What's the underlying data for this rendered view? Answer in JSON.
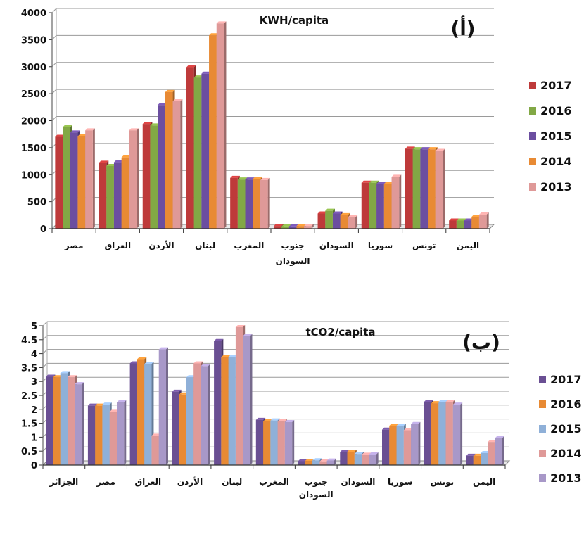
{
  "chart_data": [
    {
      "type": "bar",
      "title": "KWH/capita",
      "tag": "(أ)",
      "ylim": [
        0,
        4000
      ],
      "yticks": [
        0,
        500,
        1000,
        1500,
        2000,
        2500,
        3000,
        3500,
        4000
      ],
      "grid": true,
      "legend_position": "right",
      "categories": [
        {
          "line1": "مصر",
          "line2": ""
        },
        {
          "line1": "العراق",
          "line2": ""
        },
        {
          "line1": "الأردن",
          "line2": ""
        },
        {
          "line1": "لبنان",
          "line2": ""
        },
        {
          "line1": "المغرب",
          "line2": ""
        },
        {
          "line1": "جنوب",
          "line2": "السودان"
        },
        {
          "line1": "السودان",
          "line2": ""
        },
        {
          "line1": "سوريا",
          "line2": ""
        },
        {
          "line1": "تونس",
          "line2": ""
        },
        {
          "line1": "اليمن",
          "line2": ""
        }
      ],
      "series": [
        {
          "name": "2017",
          "color": "#be3a3a",
          "values": [
            1700,
            1220,
            1940,
            2990,
            940,
            50,
            280,
            850,
            1480,
            150
          ]
        },
        {
          "name": "2016",
          "color": "#82a845",
          "values": [
            1880,
            1160,
            1910,
            2800,
            910,
            40,
            330,
            850,
            1470,
            150
          ]
        },
        {
          "name": "2015",
          "color": "#6b4ea0",
          "values": [
            1780,
            1230,
            2290,
            2870,
            910,
            40,
            280,
            830,
            1470,
            150
          ]
        },
        {
          "name": "2014",
          "color": "#e88a34",
          "values": [
            1710,
            1320,
            2530,
            3580,
            920,
            50,
            250,
            830,
            1470,
            220
          ]
        },
        {
          "name": "2013",
          "color": "#df9998",
          "values": [
            1820,
            1820,
            2360,
            3800,
            900,
            50,
            210,
            960,
            1440,
            260
          ]
        }
      ]
    },
    {
      "type": "bar",
      "title": "tCO2/capita",
      "tag": "(ب)",
      "ylim": [
        0,
        5
      ],
      "yticks": [
        "0",
        "0.5",
        "1",
        "1.5",
        "2",
        "2.5",
        "3",
        "3.5",
        "4",
        "4.5",
        "5"
      ],
      "grid": true,
      "legend_position": "right",
      "categories": [
        {
          "line1": "الجزائر",
          "line2": ""
        },
        {
          "line1": "مصر",
          "line2": ""
        },
        {
          "line1": "العراق",
          "line2": ""
        },
        {
          "line1": "الأردن",
          "line2": ""
        },
        {
          "line1": "لبنان",
          "line2": ""
        },
        {
          "line1": "المغرب",
          "line2": ""
        },
        {
          "line1": "جنوب",
          "line2": "السودان"
        },
        {
          "line1": "السودان",
          "line2": ""
        },
        {
          "line1": "سوريا",
          "line2": ""
        },
        {
          "line1": "تونس",
          "line2": ""
        },
        {
          "line1": "اليمن",
          "line2": ""
        }
      ],
      "series": [
        {
          "name": "2017",
          "color": "#6a4f93",
          "values": [
            3.17,
            2.13,
            3.65,
            2.63,
            4.45,
            1.62,
            0.14,
            0.47,
            1.27,
            2.27,
            0.33
          ]
        },
        {
          "name": "2016",
          "color": "#e88a34",
          "values": [
            3.15,
            2.13,
            3.8,
            2.53,
            3.87,
            1.57,
            0.15,
            0.48,
            1.41,
            2.22,
            0.33
          ]
        },
        {
          "name": "2015",
          "color": "#8fb0d8",
          "values": [
            3.3,
            2.17,
            3.63,
            3.15,
            3.88,
            1.6,
            0.17,
            0.4,
            1.41,
            2.27,
            0.43
          ]
        },
        {
          "name": "2014",
          "color": "#df9998",
          "values": [
            3.15,
            1.91,
            1.05,
            3.65,
            4.95,
            1.57,
            0.13,
            0.37,
            1.25,
            2.27,
            0.83
          ]
        },
        {
          "name": "2013",
          "color": "#a898c8",
          "values": [
            2.9,
            2.25,
            4.15,
            3.55,
            4.63,
            1.54,
            0.16,
            0.38,
            1.47,
            2.17,
            0.97
          ]
        }
      ]
    }
  ]
}
